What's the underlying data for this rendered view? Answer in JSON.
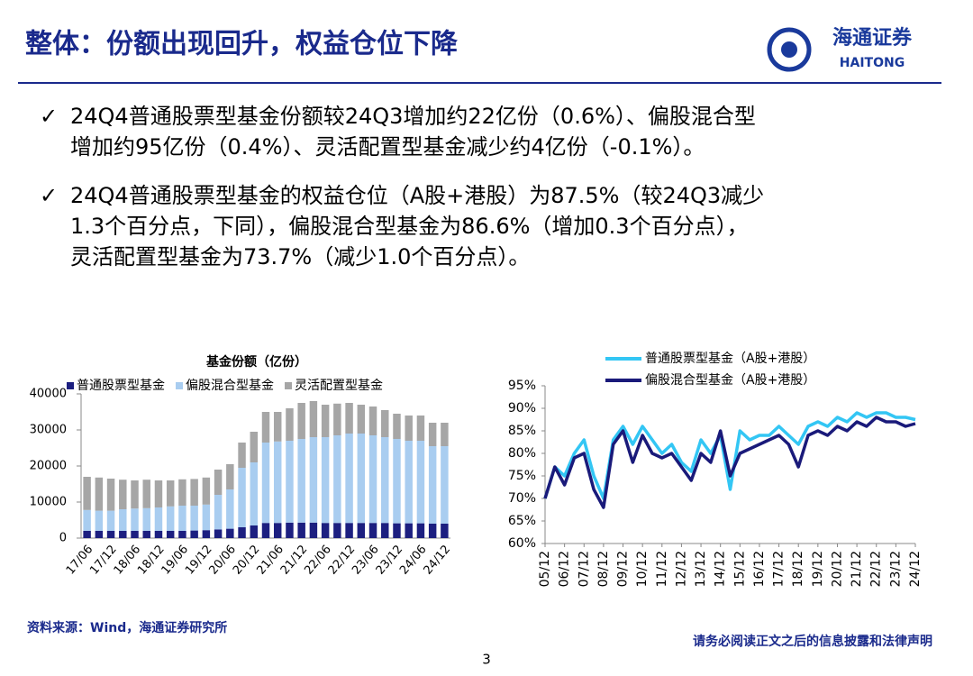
{
  "header": {
    "title": "整体：份额出现回升，权益仓位下降",
    "logo_cn": "海通证券",
    "logo_en": "HAITONG"
  },
  "bullets": [
    [
      "24Q4普通股票型基金份额较24Q3增加约22亿份（0.6%）、偏股混合型",
      "增加约95亿份（0.4%）、灵活配置型基金减少约4亿份（-0.1%）。"
    ],
    [
      "24Q4普通股票型基金的权益仓位（A股+港股）为87.5%（较24Q3减少",
      "1.3个百分点，下同），偏股混合型基金为86.6%（增加0.3个百分点），",
      "灵活配置型基金为73.7%（减少1.0个百分点）。"
    ]
  ],
  "footer": {
    "source": "资料来源：Wind，海通证券研究所",
    "disclaimer": "请务必阅读正文之后的信息披露和法律声明",
    "page": "3"
  },
  "chart_data": [
    {
      "type": "bar",
      "stacked": true,
      "title": "基金份额（亿份）",
      "categories": [
        "17/06",
        null,
        "17/12",
        null,
        "18/06",
        null,
        "18/12",
        null,
        "19/06",
        null,
        "19/12",
        null,
        "20/06",
        null,
        "20/12",
        null,
        "21/06",
        null,
        "21/12",
        null,
        "22/06",
        null,
        "22/12",
        null,
        "23/06",
        null,
        "23/12",
        null,
        "24/06",
        null,
        "24/12"
      ],
      "series": [
        {
          "name": "普通股票型基金",
          "color": "#1c1f80",
          "values": [
            2000,
            2000,
            2000,
            2000,
            2000,
            2000,
            2000,
            2000,
            2000,
            2100,
            2200,
            2400,
            2600,
            3000,
            3500,
            4200,
            4200,
            4300,
            4300,
            4300,
            4200,
            4200,
            4200,
            4200,
            4200,
            4200,
            4100,
            4100,
            4100,
            4000,
            4000
          ]
        },
        {
          "name": "偏股混合型基金",
          "color": "#a9cdf0",
          "values": [
            5800,
            5600,
            5600,
            6000,
            6200,
            6300,
            6500,
            6800,
            7000,
            6900,
            7100,
            9600,
            10900,
            16500,
            17500,
            22300,
            22600,
            22700,
            23200,
            23700,
            23800,
            24300,
            24800,
            24800,
            24300,
            23800,
            23400,
            22900,
            22900,
            21500,
            21500
          ]
        },
        {
          "name": "灵活配置型基金",
          "color": "#a6a6a6",
          "values": [
            9200,
            9200,
            8900,
            8200,
            7800,
            7900,
            7500,
            7200,
            7300,
            7400,
            7500,
            7000,
            7000,
            7000,
            8500,
            8500,
            8200,
            9000,
            10000,
            10000,
            9000,
            8800,
            8500,
            8000,
            8000,
            7500,
            7000,
            7000,
            7000,
            6500,
            6500
          ]
        }
      ],
      "ylim": [
        0,
        40000
      ],
      "yticks": [
        0,
        10000,
        20000,
        30000,
        40000
      ]
    },
    {
      "type": "line",
      "categories": [
        "05/12",
        null,
        "06/12",
        null,
        "07/12",
        null,
        "08/12",
        null,
        "09/12",
        null,
        "10/12",
        null,
        "11/12",
        null,
        "12/12",
        null,
        "13/12",
        null,
        "14/12",
        null,
        "15/12",
        null,
        "16/12",
        null,
        "17/12",
        null,
        "18/12",
        null,
        "19/12",
        null,
        "20/12",
        null,
        "21/12",
        null,
        "22/12",
        null,
        "23/12",
        null,
        "24/12"
      ],
      "series": [
        {
          "name": "普通股票型基金（A股+港股）",
          "color": "#33c6f4",
          "values": [
            70,
            77,
            75,
            80,
            83,
            75,
            70,
            83,
            86,
            82,
            86,
            83,
            80,
            82,
            78,
            76,
            83,
            80,
            84,
            72,
            85,
            83,
            84,
            84,
            86,
            84,
            82,
            86,
            87,
            86,
            88,
            87,
            89,
            88,
            89,
            89,
            88,
            88,
            87.5
          ]
        },
        {
          "name": "偏股混合型基金（A股+港股）",
          "color": "#1a1a7a",
          "values": [
            70,
            77,
            73,
            79,
            80,
            72,
            68,
            82,
            85,
            78,
            84,
            80,
            79,
            80,
            77,
            74,
            80,
            78,
            85,
            75,
            80,
            81,
            82,
            83,
            84,
            82,
            77,
            84,
            85,
            84,
            86,
            85,
            87,
            86,
            88,
            87,
            87,
            86,
            86.6
          ]
        }
      ],
      "ylim": [
        60,
        95
      ],
      "yticks": [
        {
          "value": 60,
          "label": "60%"
        },
        {
          "value": 65,
          "label": "65%"
        },
        {
          "value": 70,
          "label": "70%"
        },
        {
          "value": 75,
          "label": "75%"
        },
        {
          "value": 80,
          "label": "80%"
        },
        {
          "value": 85,
          "label": "85%"
        },
        {
          "value": 90,
          "label": "90%"
        },
        {
          "value": 95,
          "label": "95%"
        }
      ]
    }
  ]
}
